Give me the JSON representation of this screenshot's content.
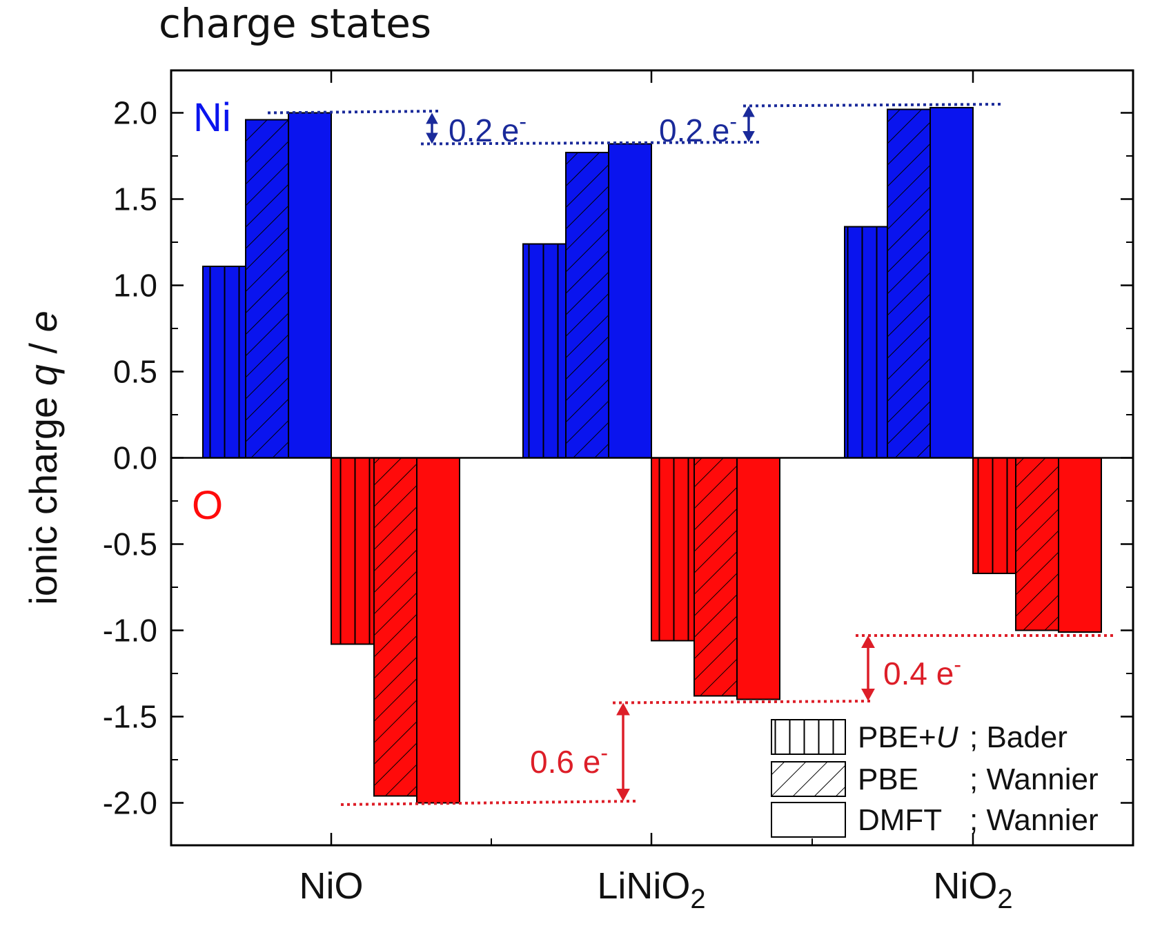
{
  "chart_data": {
    "type": "bar",
    "title": "charge states",
    "ylabel": {
      "prefix": "ionic charge ",
      "q": "q",
      "sep": " / ",
      "e": "e"
    },
    "ylim": [
      -2.25,
      2.25
    ],
    "yticks": [
      -2.0,
      -1.5,
      -1.0,
      -0.5,
      0.0,
      0.5,
      1.0,
      1.5,
      2.0
    ],
    "ytick_labels": [
      "-2.0",
      "-1.5",
      "-1.0",
      "-0.5",
      "0.0",
      "0.5",
      "1.0",
      "1.5",
      "2.0"
    ],
    "categories": [
      {
        "base": "NiO",
        "sub": ""
      },
      {
        "base": "LiNiO",
        "sub": "2"
      },
      {
        "base": "NiO",
        "sub": "2"
      }
    ],
    "series": [
      {
        "name": "PBE+U; Bader",
        "pattern": "vertical",
        "ni": [
          1.11,
          1.24,
          1.34
        ],
        "o": [
          -1.08,
          -1.06,
          -0.67
        ]
      },
      {
        "name": "PBE ; Wannier",
        "pattern": "diagonal",
        "ni": [
          1.96,
          1.77,
          2.02
        ],
        "o": [
          -1.96,
          -1.38,
          -1.0
        ]
      },
      {
        "name": "DMFT ; Wannier",
        "pattern": "solid",
        "ni": [
          2.0,
          1.82,
          2.03
        ],
        "o": [
          -2.0,
          -1.4,
          -1.01
        ]
      }
    ],
    "species_labels": {
      "ni": "Ni",
      "o": "O"
    },
    "colors": {
      "ni": "#0a14ee",
      "o": "#ff0b0b",
      "ni_annot": "#1a2a9a",
      "o_annot": "#dd1e28"
    },
    "annotations": [
      {
        "text": "0.2 e",
        "sup": "-",
        "species": "ni",
        "from": 1.82,
        "to": 2.0
      },
      {
        "text": "0.2 e",
        "sup": "-",
        "species": "ni",
        "from": 1.82,
        "to": 2.04
      },
      {
        "text": "0.6 e",
        "sup": "-",
        "species": "o",
        "from": -2.0,
        "to": -1.42
      },
      {
        "text": "0.4 e",
        "sup": "-",
        "species": "o",
        "from": -1.42,
        "to": -1.03
      }
    ],
    "legend": {
      "placement": "bottom-right",
      "entries": [
        {
          "method": "PBE+",
          "u": "U",
          "rest": "; Bader",
          "pattern": "vertical"
        },
        {
          "method": "PBE",
          "u": "",
          "rest": "; Wannier",
          "pattern": "diagonal"
        },
        {
          "method": "DMFT",
          "u": "",
          "rest": "; Wannier",
          "pattern": "solid"
        }
      ]
    },
    "grid": false
  }
}
